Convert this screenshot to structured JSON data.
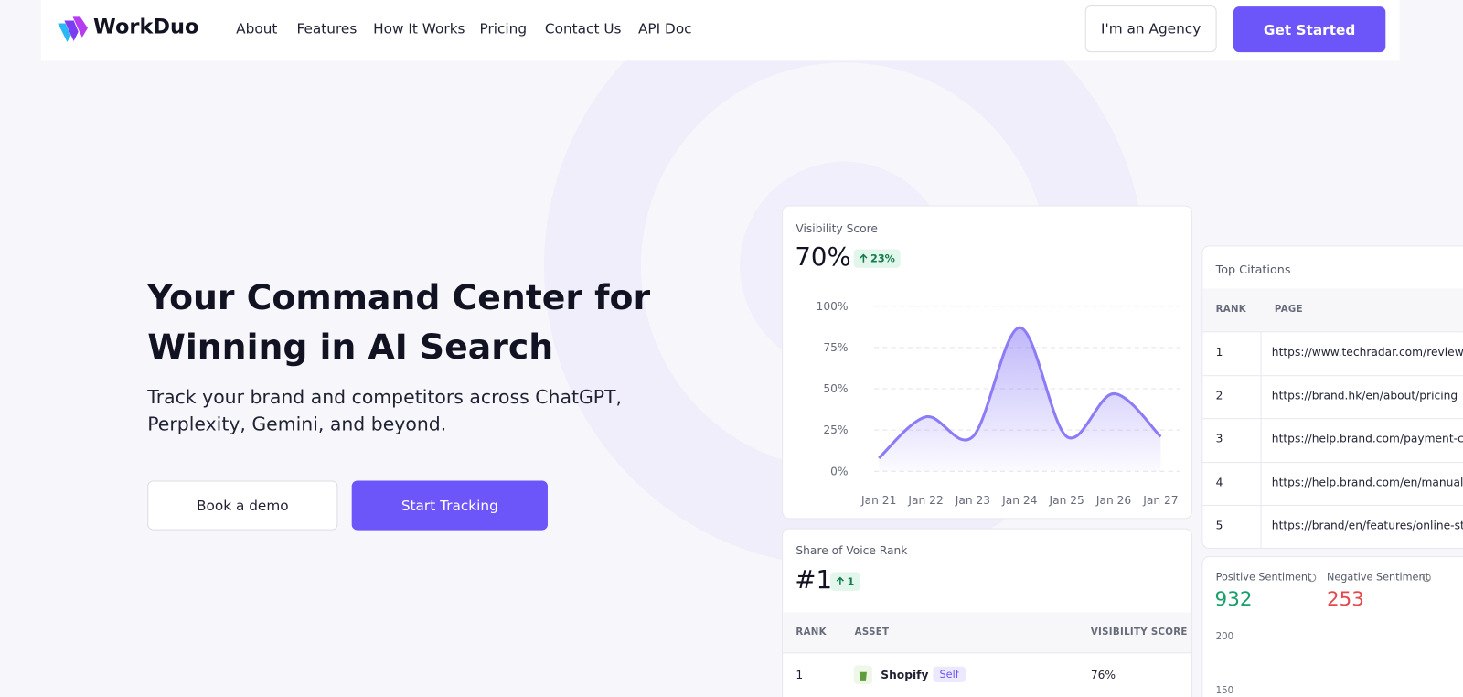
{
  "header": {
    "logo": "WorkDuo",
    "nav": [
      "About",
      "Features",
      "How It Works",
      "Pricing",
      "Contact Us",
      "API Doc"
    ],
    "agency_button": "I'm an Agency",
    "cta_button": "Get Started"
  },
  "hero": {
    "title_line1": "Your Command Center for",
    "title_line2": "Winning in AI Search",
    "subtitle": "Track your brand and competitors across ChatGPT, Perplexity, Gemini, and beyond.",
    "demo_button": "Book a demo",
    "tracking_button": "Start Tracking"
  },
  "visibility_card": {
    "value": "70%",
    "change": "23%"
  },
  "chart_data": {
    "type": "area",
    "title": "Visibility Score",
    "categories": [
      "Jan 21",
      "Jan 22",
      "Jan 23",
      "Jan 24",
      "Jan 25",
      "Jan 26",
      "Jan 27"
    ],
    "values": [
      8,
      33,
      21,
      87,
      21,
      47,
      21
    ],
    "color": "#8b7cf6",
    "ylim": [
      0,
      100
    ],
    "yticks": [
      {
        "value": 0,
        "label": "0%"
      },
      {
        "value": 25,
        "label": "25%"
      },
      {
        "value": 50,
        "label": "50%"
      },
      {
        "value": 75,
        "label": "75%"
      },
      {
        "value": 100,
        "label": "100%"
      }
    ],
    "grid": true
  },
  "citations_card": {
    "title": "Top Citations",
    "headers": [
      "RANK",
      "PAGE"
    ],
    "rows": [
      [
        "1",
        "https://www.techradar.com/reviews"
      ],
      [
        "2",
        "https://brand.hk/en/about/pricing"
      ],
      [
        "3",
        "https://help.brand.com/payment-co"
      ],
      [
        "4",
        "https://help.brand.com/en/manual..."
      ],
      [
        "5",
        "https://brand/en/features/online-sto"
      ]
    ]
  },
  "share_card": {
    "title": "Share of Voice Rank",
    "value": "#1",
    "change": "1",
    "headers": [
      "RANK",
      "ASSET",
      "VISIBILITY SCORE"
    ],
    "rows": [
      [
        "1",
        "Shopify",
        "Self",
        "76%"
      ]
    ]
  },
  "sentiment_card": {
    "positive_label": "Positive Sentiment",
    "positive_value": 932,
    "negative_label": "Negative Sentiment",
    "negative_value": 253,
    "axis_labels": [
      200,
      150
    ]
  }
}
